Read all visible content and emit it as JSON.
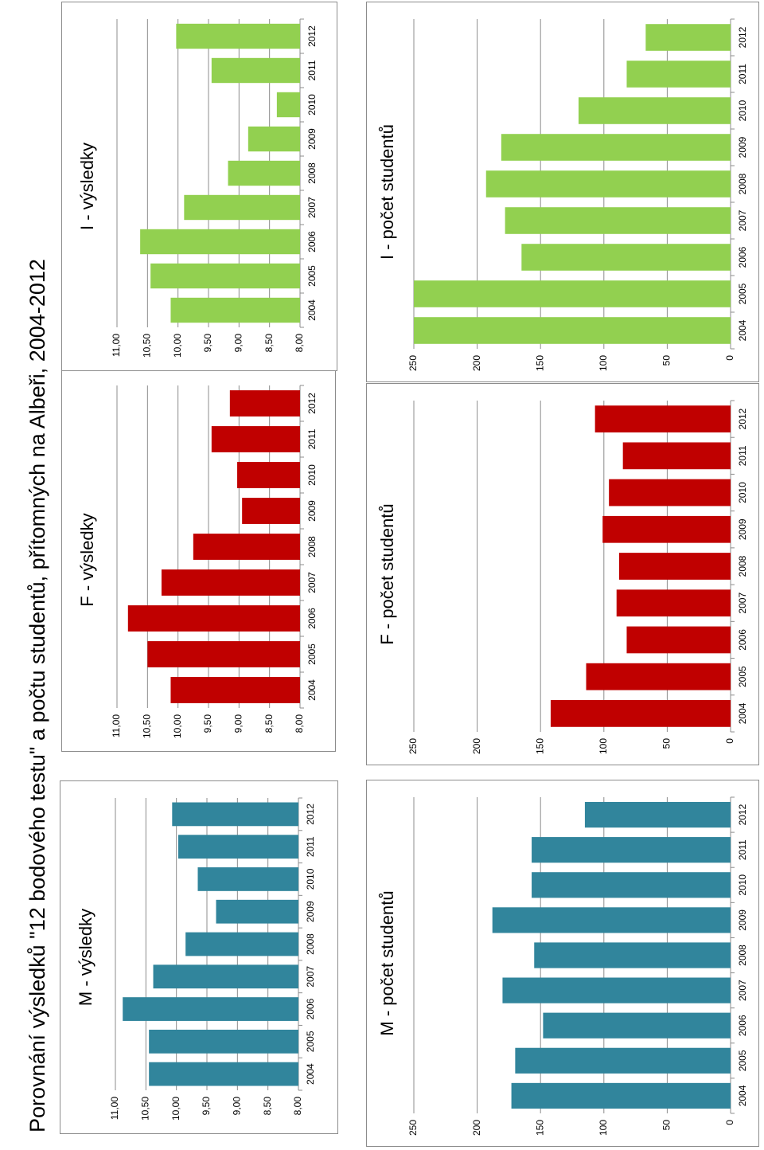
{
  "page": {
    "title": "Porovnání výsledků \"12 bodového testu\" a počtu studentů, přítomných na Albeři, 2004-2012"
  },
  "colors": {
    "M": "#31859c",
    "F": "#c00000",
    "I": "#92d050"
  },
  "chart_data": [
    {
      "id": "m-results",
      "type": "bar",
      "title": "M - výsledky",
      "categories": [
        "2004",
        "2005",
        "2006",
        "2007",
        "2008",
        "2009",
        "2010",
        "2011",
        "2012"
      ],
      "values": [
        10.45,
        10.45,
        10.88,
        10.38,
        9.85,
        9.35,
        9.65,
        9.97,
        10.07
      ],
      "ylim": [
        8,
        11
      ],
      "yticks": [
        8,
        8.5,
        9,
        9.5,
        10,
        10.5,
        11
      ],
      "ytick_labels": [
        "8,00",
        "8,50",
        "9,00",
        "9,50",
        "10,00",
        "10,50",
        "11,00"
      ],
      "color": "#31859c",
      "grid": true
    },
    {
      "id": "f-results",
      "type": "bar",
      "title": "F - výsledky",
      "categories": [
        "2004",
        "2005",
        "2006",
        "2007",
        "2008",
        "2009",
        "2010",
        "2011",
        "2012"
      ],
      "values": [
        10.12,
        10.5,
        10.82,
        10.27,
        9.75,
        8.95,
        9.03,
        9.45,
        9.15
      ],
      "ylim": [
        8,
        11
      ],
      "yticks": [
        8,
        8.5,
        9,
        9.5,
        10,
        10.5,
        11
      ],
      "ytick_labels": [
        "8,00",
        "8,50",
        "9,00",
        "9,50",
        "10,00",
        "10,50",
        "11,00"
      ],
      "color": "#c00000",
      "grid": true
    },
    {
      "id": "i-results",
      "type": "bar",
      "title": "I - výsledky",
      "categories": [
        "2004",
        "2005",
        "2006",
        "2007",
        "2008",
        "2009",
        "2010",
        "2011",
        "2012"
      ],
      "values": [
        10.12,
        10.45,
        10.62,
        9.9,
        9.18,
        8.85,
        8.38,
        9.45,
        10.03
      ],
      "ylim": [
        8,
        11
      ],
      "yticks": [
        8,
        8.5,
        9,
        9.5,
        10,
        10.5,
        11
      ],
      "ytick_labels": [
        "8,00",
        "8,50",
        "9,00",
        "9,50",
        "10,00",
        "10,50",
        "11,00"
      ],
      "color": "#92d050",
      "grid": true
    },
    {
      "id": "m-students",
      "type": "bar",
      "title": "M - počet studentů",
      "categories": [
        "2004",
        "2005",
        "2006",
        "2007",
        "2008",
        "2009",
        "2010",
        "2011",
        "2012"
      ],
      "values": [
        173,
        170,
        148,
        180,
        155,
        188,
        157,
        157,
        115
      ],
      "ylim": [
        0,
        250
      ],
      "yticks": [
        0,
        50,
        100,
        150,
        200,
        250
      ],
      "ytick_labels": [
        "0",
        "50",
        "100",
        "150",
        "200",
        "250"
      ],
      "color": "#31859c",
      "grid": true
    },
    {
      "id": "f-students",
      "type": "bar",
      "title": "F - počet studentů",
      "categories": [
        "2004",
        "2005",
        "2006",
        "2007",
        "2008",
        "2009",
        "2010",
        "2011",
        "2012"
      ],
      "values": [
        142,
        114,
        82,
        90,
        88,
        101,
        96,
        85,
        107
      ],
      "ylim": [
        0,
        250
      ],
      "yticks": [
        0,
        50,
        100,
        150,
        200,
        250
      ],
      "ytick_labels": [
        "0",
        "50",
        "100",
        "150",
        "200",
        "250"
      ],
      "color": "#c00000",
      "grid": true
    },
    {
      "id": "i-students",
      "type": "bar",
      "title": "I - počet studentů",
      "categories": [
        "2004",
        "2005",
        "2006",
        "2007",
        "2008",
        "2009",
        "2010",
        "2011",
        "2012"
      ],
      "values": [
        270,
        250,
        165,
        178,
        193,
        181,
        120,
        82,
        67
      ],
      "ylim": [
        0,
        250
      ],
      "yticks": [
        0,
        50,
        100,
        150,
        200,
        250
      ],
      "ytick_labels": [
        "0",
        "50",
        "100",
        "150",
        "200",
        "250"
      ],
      "color": "#92d050",
      "grid": true
    }
  ]
}
